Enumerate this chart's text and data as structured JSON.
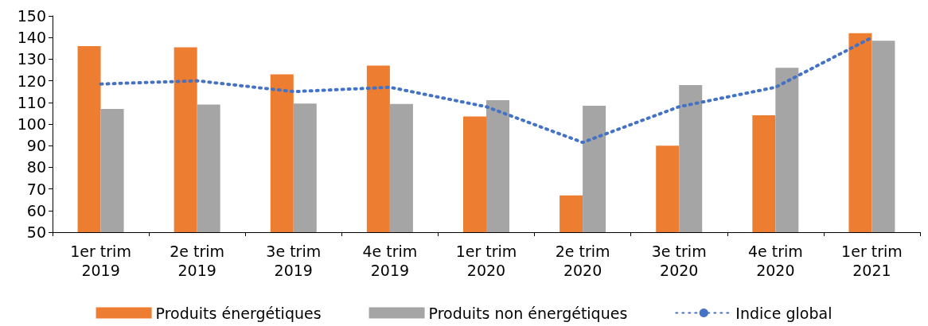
{
  "chart_data": {
    "type": "bar",
    "categories": [
      "1er trim\n2019",
      "2e trim\n2019",
      "3e trim\n2019",
      "4e trim\n2019",
      "1er trim\n2020",
      "2e trim\n2020",
      "3e trim\n2020",
      "4e trim\n2020",
      "1er trim\n2021"
    ],
    "series": [
      {
        "name": "Produits énergétiques",
        "color": "#ed7d31",
        "values": [
          136,
          135.5,
          123,
          127,
          103.5,
          67,
          90,
          104,
          142
        ]
      },
      {
        "name": "Produits non énergétiques",
        "color": "#a5a5a5",
        "values": [
          107,
          109,
          109.5,
          109.3,
          111,
          108.5,
          118,
          126,
          138.5
        ]
      },
      {
        "name": "Indice global",
        "type": "line",
        "color": "#4472c4",
        "line_style": "dotted",
        "marker": "none",
        "values": [
          118.5,
          120,
          115,
          117,
          108,
          91.5,
          108,
          117,
          140
        ]
      }
    ],
    "ylim": [
      50,
      150
    ],
    "yticks": [
      50,
      60,
      70,
      80,
      90,
      100,
      110,
      120,
      130,
      140,
      150
    ],
    "grid": false,
    "legend": "bottom"
  }
}
